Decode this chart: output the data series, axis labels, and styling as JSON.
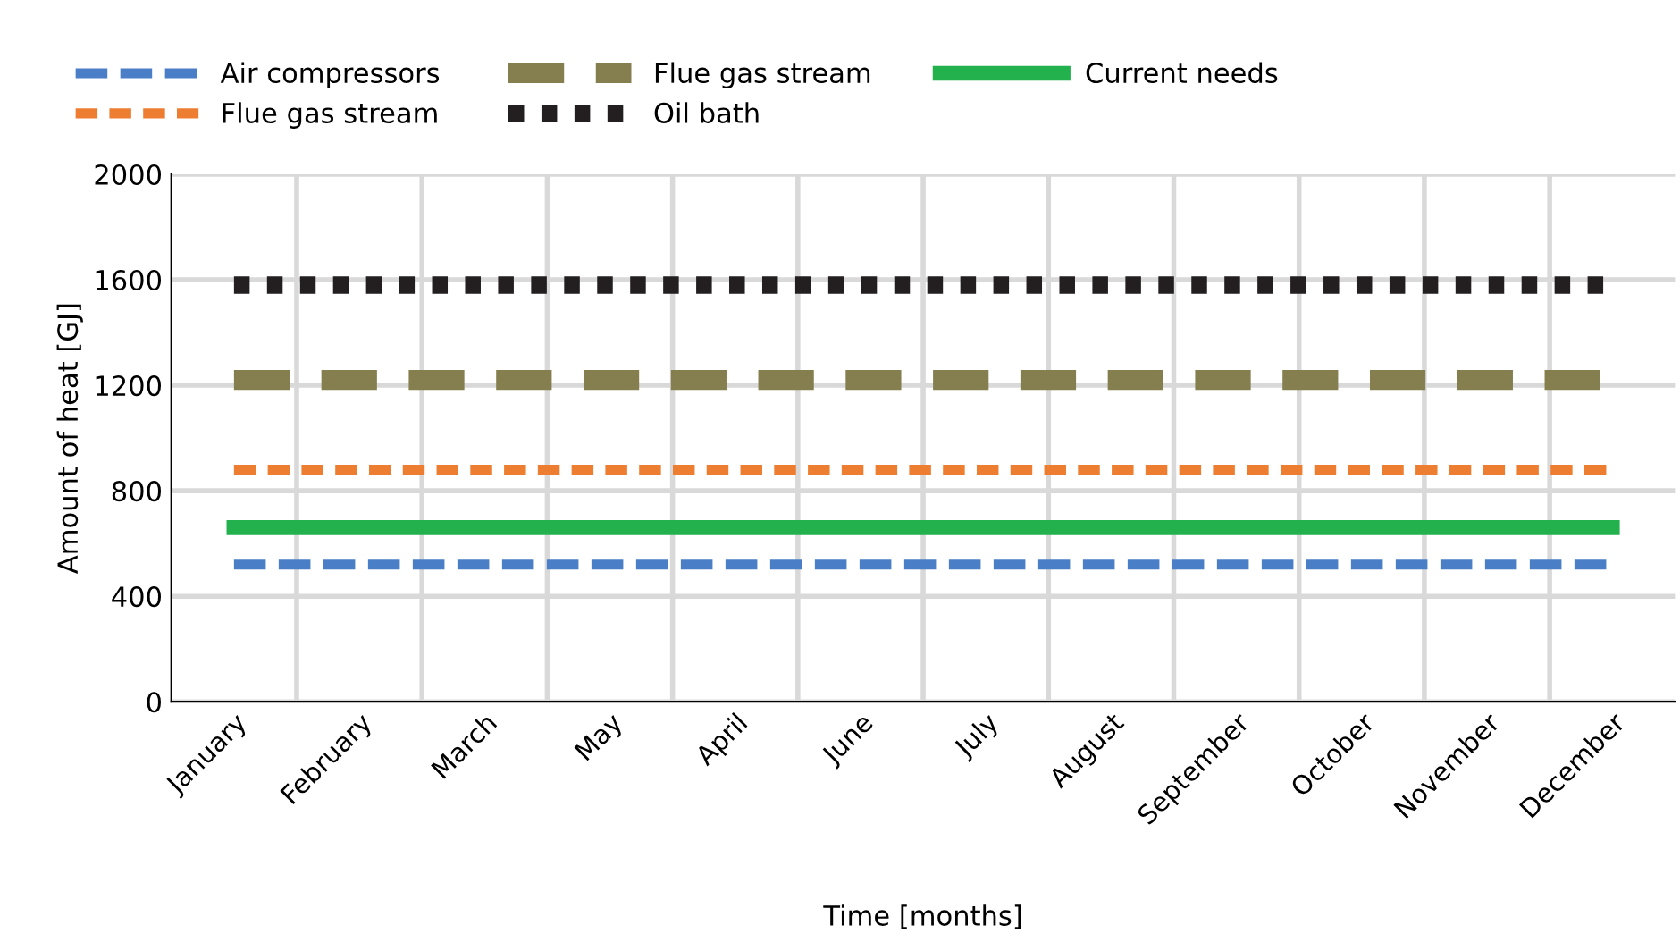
{
  "chart_data": {
    "type": "line",
    "xlabel": "Time [months]",
    "ylabel": "Amount of heat [GJ]",
    "categories": [
      "January",
      "February",
      "March",
      "May",
      "April",
      "June",
      "July",
      "August",
      "September",
      "October",
      "November",
      "December"
    ],
    "series": [
      {
        "name": "Air compressors",
        "color": "#4a7fc8",
        "line_style": "dashed",
        "values": [
          520,
          520,
          520,
          520,
          520,
          520,
          520,
          520,
          520,
          520,
          520,
          520
        ]
      },
      {
        "name": "Flue gas stream",
        "color": "#ed7d31",
        "line_style": "dashed",
        "values": [
          880,
          880,
          880,
          880,
          880,
          880,
          880,
          880,
          880,
          880,
          880,
          880
        ]
      },
      {
        "name": "Flue gas stream",
        "color": "#857f50",
        "line_style": "dashed",
        "values": [
          1220,
          1220,
          1220,
          1220,
          1220,
          1220,
          1220,
          1220,
          1220,
          1220,
          1220,
          1220
        ]
      },
      {
        "name": "Oil bath",
        "color": "#231f20",
        "line_style": "dotted",
        "values": [
          1580,
          1580,
          1580,
          1580,
          1580,
          1580,
          1580,
          1580,
          1580,
          1580,
          1580,
          1580
        ]
      },
      {
        "name": "Current needs",
        "color": "#22b14c",
        "line_style": "solid",
        "values": [
          660,
          660,
          660,
          660,
          660,
          660,
          660,
          660,
          660,
          660,
          660,
          660
        ]
      }
    ],
    "ylim": [
      0,
      2000
    ],
    "yticks": [
      0,
      400,
      800,
      1200,
      1600,
      2000
    ],
    "grid": true,
    "legend": "top",
    "marker": "none"
  }
}
